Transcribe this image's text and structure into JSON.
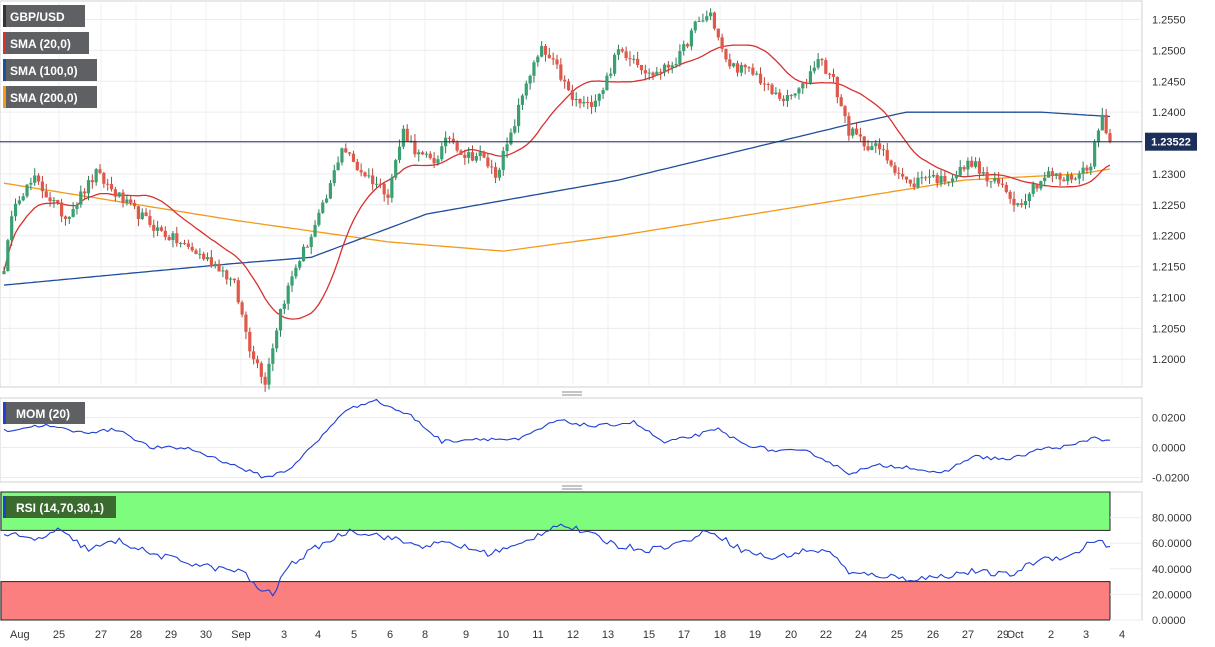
{
  "chart_data": {
    "type": "candlestick",
    "symbol": "GBP/USD",
    "overlays": [
      {
        "name": "SMA (20,0)",
        "color": "#d93030"
      },
      {
        "name": "SMA (100,0)",
        "color": "#1f4e9c"
      },
      {
        "name": "SMA (200,0)",
        "color": "#f29a1c"
      }
    ],
    "current_price": "1.23522",
    "current_value": 1.23522,
    "price_axis": {
      "ticks": [
        "1.2000",
        "1.2050",
        "1.2100",
        "1.2150",
        "1.2200",
        "1.2250",
        "1.2300",
        "1.2350",
        "1.2400",
        "1.2450",
        "1.2500",
        "1.2550"
      ],
      "range": [
        1.1955,
        1.258
      ]
    },
    "x_labels": [
      "Aug",
      "25",
      "27",
      "28",
      "29",
      "30",
      "Sep",
      "3",
      "4",
      "5",
      "6",
      "8",
      "9",
      "10",
      "11",
      "12",
      "13",
      "15",
      "17",
      "18",
      "19",
      "20",
      "22",
      "24",
      "25",
      "26",
      "27",
      "29",
      "Oct",
      "2",
      "3",
      "4"
    ],
    "anchors": [
      [
        0,
        1.215
      ],
      [
        3,
        1.226
      ],
      [
        8,
        1.229
      ],
      [
        16,
        1.223
      ],
      [
        24,
        1.23
      ],
      [
        32,
        1.225
      ],
      [
        40,
        1.221
      ],
      [
        48,
        1.218
      ],
      [
        56,
        1.215
      ],
      [
        60,
        1.212
      ],
      [
        64,
        1.202
      ],
      [
        68,
        1.1965
      ],
      [
        72,
        1.208
      ],
      [
        76,
        1.215
      ],
      [
        80,
        1.22
      ],
      [
        84,
        1.226
      ],
      [
        88,
        1.2345
      ],
      [
        92,
        1.231
      ],
      [
        96,
        1.229
      ],
      [
        100,
        1.227
      ],
      [
        104,
        1.237
      ],
      [
        108,
        1.233
      ],
      [
        112,
        1.232
      ],
      [
        116,
        1.236
      ],
      [
        120,
        1.233
      ],
      [
        124,
        1.233
      ],
      [
        128,
        1.23
      ],
      [
        132,
        1.236
      ],
      [
        136,
        1.245
      ],
      [
        140,
        1.25
      ],
      [
        144,
        1.247
      ],
      [
        148,
        1.242
      ],
      [
        152,
        1.241
      ],
      [
        156,
        1.244
      ],
      [
        160,
        1.25
      ],
      [
        164,
        1.249
      ],
      [
        168,
        1.246
      ],
      [
        172,
        1.247
      ],
      [
        176,
        1.249
      ],
      [
        180,
        1.254
      ],
      [
        184,
        1.256
      ],
      [
        188,
        1.248
      ],
      [
        192,
        1.247
      ],
      [
        196,
        1.246
      ],
      [
        200,
        1.243
      ],
      [
        204,
        1.242
      ],
      [
        208,
        1.244
      ],
      [
        212,
        1.249
      ],
      [
        216,
        1.245
      ],
      [
        220,
        1.237
      ],
      [
        224,
        1.235
      ],
      [
        228,
        1.234
      ],
      [
        232,
        1.231
      ],
      [
        236,
        1.228
      ],
      [
        240,
        1.23
      ],
      [
        244,
        1.229
      ],
      [
        248,
        1.23
      ],
      [
        252,
        1.232
      ],
      [
        256,
        1.229
      ],
      [
        260,
        1.228
      ],
      [
        264,
        1.225
      ],
      [
        268,
        1.228
      ],
      [
        272,
        1.23
      ],
      [
        276,
        1.229
      ],
      [
        280,
        1.23
      ],
      [
        283,
        1.232
      ],
      [
        286,
        1.2395
      ],
      [
        288,
        1.2352
      ]
    ],
    "sma100_anchors": [
      [
        0,
        1.212
      ],
      [
        60,
        1.2155
      ],
      [
        80,
        1.2165
      ],
      [
        110,
        1.2235
      ],
      [
        160,
        1.229
      ],
      [
        220,
        1.238
      ],
      [
        235,
        1.24
      ],
      [
        270,
        1.24
      ],
      [
        288,
        1.2393
      ]
    ],
    "sma200_anchors": [
      [
        0,
        1.2285
      ],
      [
        60,
        1.2225
      ],
      [
        100,
        1.219
      ],
      [
        130,
        1.2175
      ],
      [
        160,
        1.22
      ],
      [
        220,
        1.226
      ],
      [
        250,
        1.229
      ],
      [
        280,
        1.23
      ],
      [
        288,
        1.2308
      ]
    ],
    "momentum": {
      "label": "MOM (20)",
      "color": "#1f3fd6",
      "ticks": [
        "-0.0200",
        "0.0000",
        "0.0200"
      ],
      "range": [
        -0.023,
        0.033
      ],
      "anchors": [
        [
          0,
          0.011
        ],
        [
          10,
          0.015
        ],
        [
          20,
          0.01
        ],
        [
          30,
          0.012
        ],
        [
          38,
          0.0
        ],
        [
          48,
          -0.0005
        ],
        [
          58,
          -0.01
        ],
        [
          68,
          -0.02
        ],
        [
          74,
          -0.015
        ],
        [
          82,
          0.005
        ],
        [
          88,
          0.023
        ],
        [
          96,
          0.032
        ],
        [
          106,
          0.021
        ],
        [
          114,
          0.004
        ],
        [
          124,
          0.006
        ],
        [
          134,
          0.005
        ],
        [
          144,
          0.018
        ],
        [
          154,
          0.014
        ],
        [
          164,
          0.017
        ],
        [
          172,
          0.003
        ],
        [
          180,
          0.008
        ],
        [
          186,
          0.012
        ],
        [
          192,
          0.003
        ],
        [
          200,
          -0.002
        ],
        [
          210,
          -0.003
        ],
        [
          220,
          -0.017
        ],
        [
          228,
          -0.012
        ],
        [
          236,
          -0.013
        ],
        [
          244,
          -0.018
        ],
        [
          252,
          -0.006
        ],
        [
          262,
          -0.008
        ],
        [
          270,
          -0.001
        ],
        [
          278,
          0.001
        ],
        [
          284,
          0.007
        ],
        [
          288,
          0.004
        ]
      ]
    },
    "rsi": {
      "label": "RSI (14,70,30,1)",
      "color": "#1f3fd6",
      "ticks": [
        "0.0000",
        "20.0000",
        "40.0000",
        "60.0000",
        "80.0000"
      ],
      "range": [
        0,
        100
      ],
      "overbought": 70,
      "oversold": 30,
      "overbought_color": "#7dfc7d",
      "oversold_color": "#fc7f7f",
      "anchors": [
        [
          0,
          68
        ],
        [
          8,
          62
        ],
        [
          14,
          70
        ],
        [
          22,
          55
        ],
        [
          30,
          62
        ],
        [
          38,
          52
        ],
        [
          48,
          45
        ],
        [
          56,
          40
        ],
        [
          62,
          38
        ],
        [
          66,
          25
        ],
        [
          70,
          20
        ],
        [
          74,
          42
        ],
        [
          82,
          58
        ],
        [
          90,
          70
        ],
        [
          98,
          66
        ],
        [
          108,
          58
        ],
        [
          116,
          60
        ],
        [
          126,
          52
        ],
        [
          134,
          58
        ],
        [
          144,
          75
        ],
        [
          150,
          70
        ],
        [
          160,
          58
        ],
        [
          168,
          55
        ],
        [
          176,
          60
        ],
        [
          184,
          70
        ],
        [
          192,
          55
        ],
        [
          200,
          48
        ],
        [
          210,
          55
        ],
        [
          216,
          52
        ],
        [
          220,
          36
        ],
        [
          228,
          35
        ],
        [
          236,
          32
        ],
        [
          244,
          34
        ],
        [
          252,
          38
        ],
        [
          262,
          35
        ],
        [
          270,
          48
        ],
        [
          278,
          50
        ],
        [
          284,
          63
        ],
        [
          288,
          57
        ]
      ]
    }
  }
}
